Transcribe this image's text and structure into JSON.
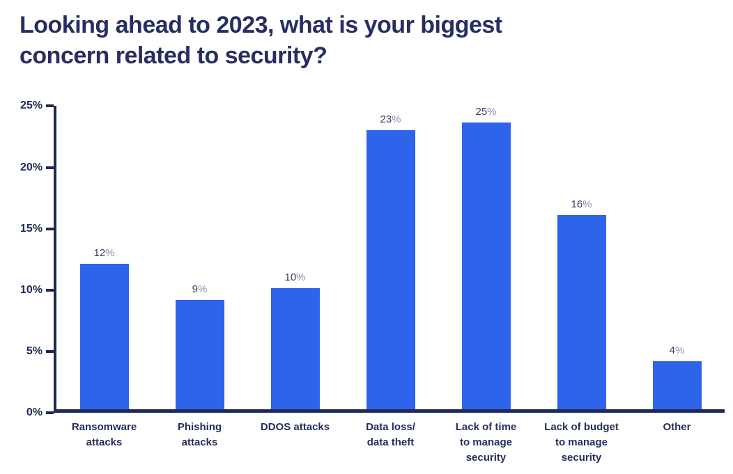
{
  "page": {
    "title": "Looking ahead to 2023, what is your biggest\nconcern related to security?"
  },
  "colors": {
    "background": "#FFFFFF",
    "bar_fill": "#2E63EB",
    "axis": "#1E2A52",
    "title_text": "#272E61",
    "value_text": "#343B69",
    "percent_symbol_text": "#8A90AB",
    "category_text": "#252E5E"
  },
  "percent_symbol": "%",
  "chart_data": {
    "type": "bar",
    "title": "Looking ahead to 2023, what is your biggest concern related to security?",
    "categories": [
      "Ransomware\nattacks",
      "Phishing\nattacks",
      "DDOS attacks",
      "Data loss/\ndata theft",
      "Lack of time\nto manage\nsecurity",
      "Lack of budget\nto manage\nsecurity",
      "Other"
    ],
    "values": [
      12,
      9,
      10,
      23,
      25,
      16,
      4
    ],
    "value_labels": [
      "12%",
      "9%",
      "10%",
      "23%",
      "25%",
      "16%",
      "4%"
    ],
    "yticks": [
      "25%",
      "20%",
      "15%",
      "10%",
      "5%",
      "0%"
    ],
    "ylim": [
      0,
      25
    ],
    "bar_color": "#2E63EB",
    "grid": false,
    "legend": "none",
    "xlabel": "",
    "ylabel": ""
  }
}
